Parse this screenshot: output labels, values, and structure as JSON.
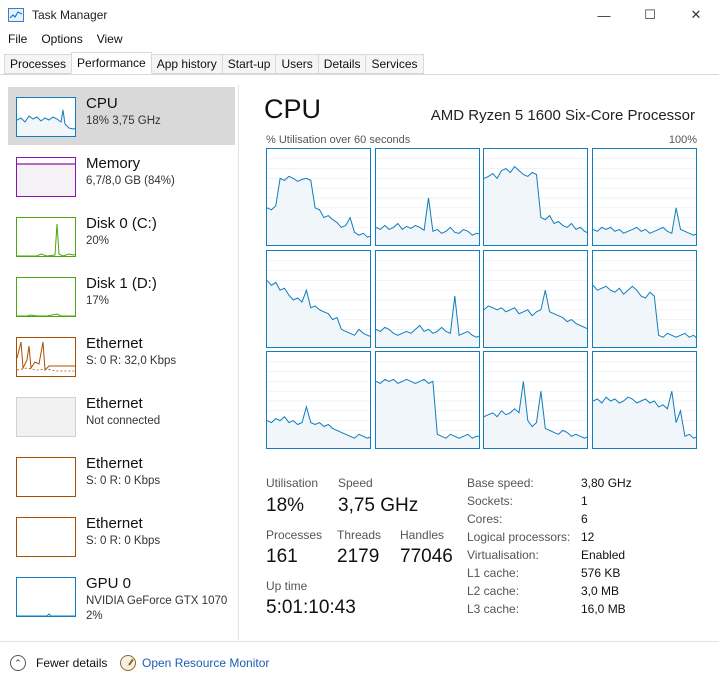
{
  "window": {
    "title": "Task Manager",
    "minimize_glyph": "—",
    "maximize_glyph": "☐",
    "close_glyph": "✕"
  },
  "menu": [
    "File",
    "Options",
    "View"
  ],
  "tabs": [
    {
      "label": "Processes",
      "active": false
    },
    {
      "label": "Performance",
      "active": true
    },
    {
      "label": "App history",
      "active": false
    },
    {
      "label": "Start-up",
      "active": false
    },
    {
      "label": "Users",
      "active": false
    },
    {
      "label": "Details",
      "active": false
    },
    {
      "label": "Services",
      "active": false
    }
  ],
  "sidebar": {
    "items": [
      {
        "name": "CPU",
        "sub": "18% 3,75 GHz",
        "color": "#117dbb",
        "selected": true
      },
      {
        "name": "Memory",
        "sub": "6,7/8,0 GB (84%)",
        "color": "#8b12ae",
        "selected": false
      },
      {
        "name": "Disk 0 (C:)",
        "sub": "20%",
        "color": "#4da60c",
        "selected": false
      },
      {
        "name": "Disk 1 (D:)",
        "sub": "17%",
        "color": "#4da60c",
        "selected": false
      },
      {
        "name": "Ethernet",
        "sub": "S: 0 R: 32,0 Kbps",
        "color": "#a74f01",
        "selected": false
      },
      {
        "name": "Ethernet",
        "sub": "Not connected",
        "color": "#bbbbbb",
        "selected": false
      },
      {
        "name": "Ethernet",
        "sub": "S: 0 R: 0 Kbps",
        "color": "#a74f01",
        "selected": false
      },
      {
        "name": "Ethernet",
        "sub": "S: 0 R: 0 Kbps",
        "color": "#a74f01",
        "selected": false
      },
      {
        "name": "GPU 0",
        "sub": "NVIDIA GeForce GTX 1070",
        "sub2": "2%",
        "color": "#117dbb",
        "selected": false
      }
    ]
  },
  "main": {
    "title": "CPU",
    "processor": "AMD Ryzen 5 1600 Six-Core Processor",
    "graph_label": "% Utilisation over 60 seconds",
    "graph_max": "100%",
    "accent": "#117dbb"
  },
  "stats": {
    "utilisation_label": "Utilisation",
    "utilisation": "18%",
    "speed_label": "Speed",
    "speed": "3,75 GHz",
    "processes_label": "Processes",
    "processes": "161",
    "threads_label": "Threads",
    "threads": "2179",
    "handles_label": "Handles",
    "handles": "77046",
    "uptime_label": "Up time",
    "uptime": "5:01:10:43"
  },
  "specs": [
    {
      "label": "Base speed:",
      "value": "3,80 GHz"
    },
    {
      "label": "Sockets:",
      "value": "1"
    },
    {
      "label": "Cores:",
      "value": "6"
    },
    {
      "label": "Logical processors:",
      "value": "12"
    },
    {
      "label": "Virtualisation:",
      "value": "Enabled"
    },
    {
      "label": "L1 cache:",
      "value": "576 KB"
    },
    {
      "label": "L2 cache:",
      "value": "3,0 MB"
    },
    {
      "label": "L3 cache:",
      "value": "16,0 MB"
    }
  ],
  "footer": {
    "fewer_details": "Fewer details",
    "open_monitor": "Open Resource Monitor"
  }
}
